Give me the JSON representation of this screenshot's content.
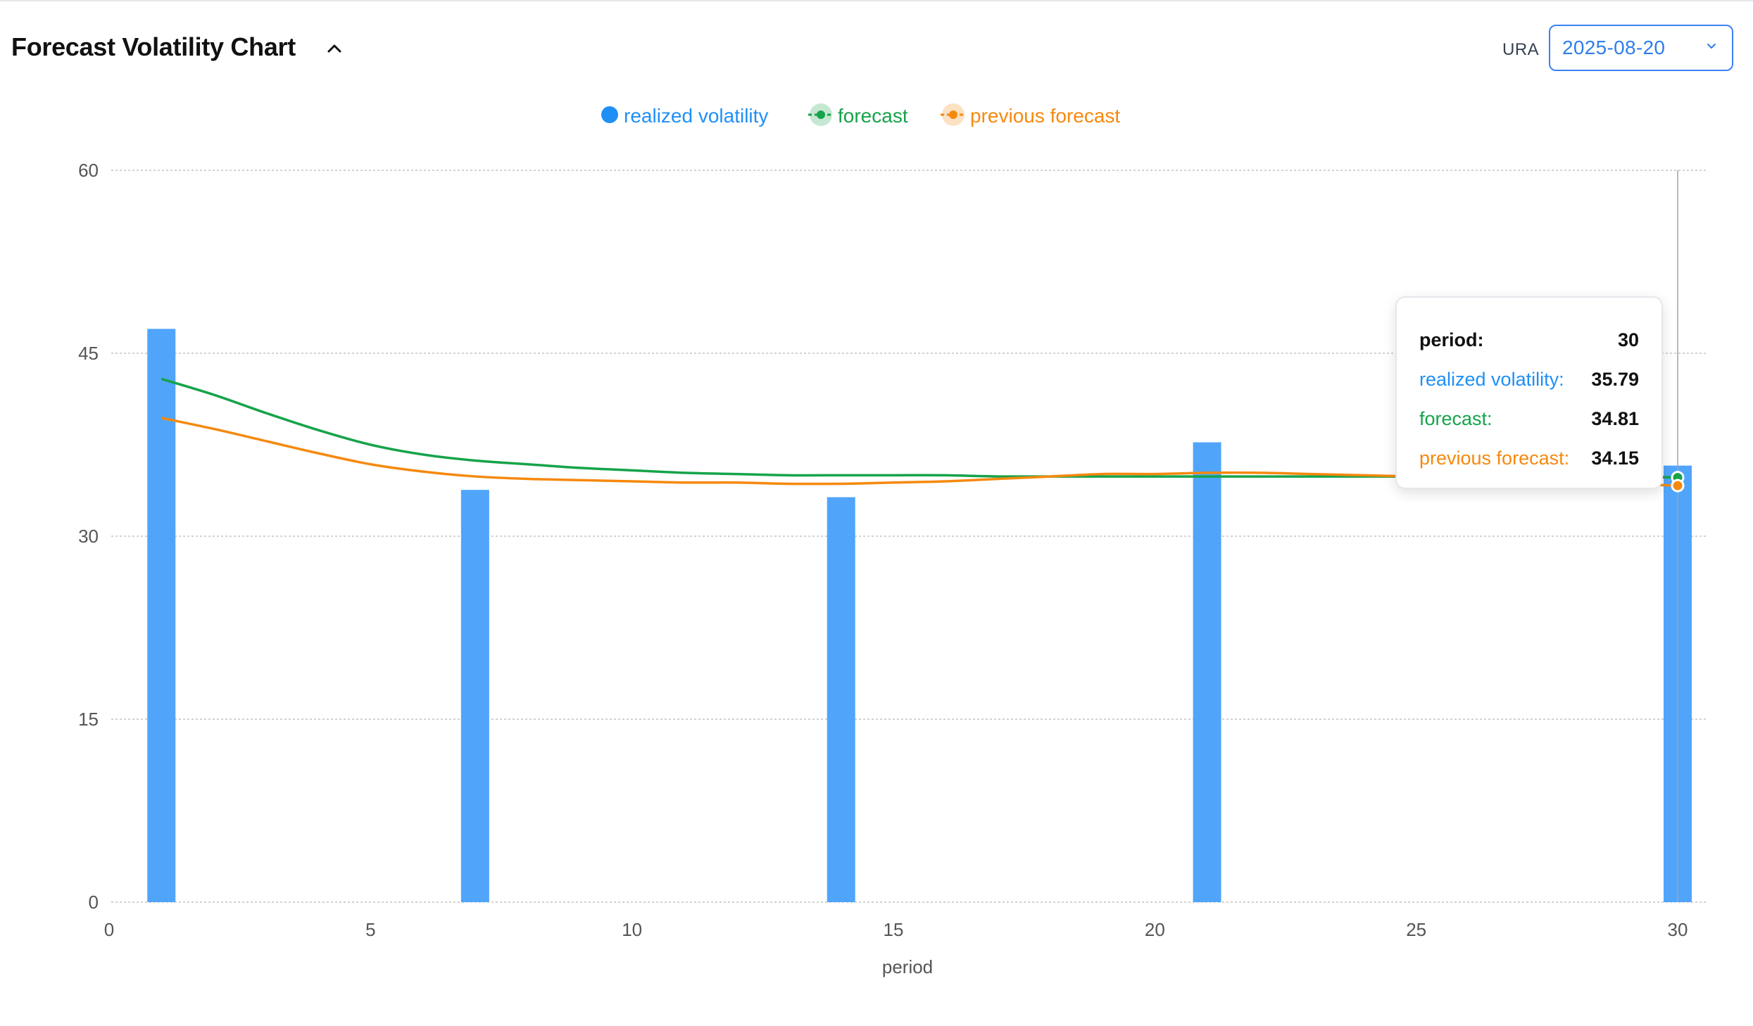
{
  "header": {
    "title": "Forecast Volatility Chart",
    "ticker": "URA",
    "date_value": "2025-08-20"
  },
  "colors": {
    "realized": "#4da3fb",
    "realized_legend": "#1f8ff5",
    "forecast": "#16a34a",
    "previous": "#f5890e",
    "grid": "#c4c4c4",
    "axis_text": "#555555"
  },
  "icons": {
    "collapse": "chevron-up-icon",
    "select": "chevron-down-icon"
  },
  "chart_data": {
    "type": "bar",
    "xlabel": "period",
    "ylabel": "",
    "xlim": [
      0,
      30
    ],
    "ylim": [
      0,
      60
    ],
    "x_ticks": [
      0,
      5,
      10,
      15,
      20,
      25,
      30
    ],
    "y_ticks": [
      0,
      15,
      30,
      45,
      60
    ],
    "grid": true,
    "legend_position": "top-center",
    "bars": {
      "name": "realized volatility",
      "x": [
        1,
        7,
        14,
        21,
        30
      ],
      "values": [
        47.0,
        33.8,
        33.2,
        37.7,
        35.79
      ]
    },
    "lines": [
      {
        "name": "forecast",
        "x": [
          1,
          2,
          3,
          4,
          5,
          6,
          7,
          8,
          9,
          10,
          11,
          12,
          13,
          14,
          15,
          16,
          17,
          18,
          19,
          20,
          21,
          22,
          23,
          24,
          25,
          26,
          27,
          28,
          29,
          30
        ],
        "values": [
          42.9,
          41.6,
          40.1,
          38.7,
          37.5,
          36.7,
          36.2,
          35.9,
          35.6,
          35.4,
          35.2,
          35.1,
          35.0,
          35.0,
          35.0,
          35.0,
          34.9,
          34.9,
          34.9,
          34.9,
          34.9,
          34.9,
          34.9,
          34.9,
          34.9,
          34.9,
          34.9,
          34.9,
          34.9,
          34.81
        ]
      },
      {
        "name": "previous forecast",
        "x": [
          1,
          2,
          3,
          4,
          5,
          6,
          7,
          8,
          9,
          10,
          11,
          12,
          13,
          14,
          15,
          16,
          17,
          18,
          19,
          20,
          21,
          22,
          23,
          24,
          25,
          26,
          27,
          28,
          29,
          30
        ],
        "values": [
          39.7,
          38.8,
          37.8,
          36.8,
          35.9,
          35.3,
          34.9,
          34.7,
          34.6,
          34.5,
          34.4,
          34.4,
          34.3,
          34.3,
          34.4,
          34.5,
          34.7,
          34.9,
          35.1,
          35.1,
          35.2,
          35.2,
          35.1,
          35.0,
          34.9,
          34.8,
          34.6,
          34.5,
          34.3,
          34.15
        ]
      }
    ],
    "tooltip": {
      "period_label": "period:",
      "period_value": "30",
      "realized_label": "realized volatility:",
      "realized_value": "35.79",
      "forecast_label": "forecast:",
      "forecast_value": "34.81",
      "previous_label": "previous forecast:",
      "previous_value": "34.15"
    }
  }
}
